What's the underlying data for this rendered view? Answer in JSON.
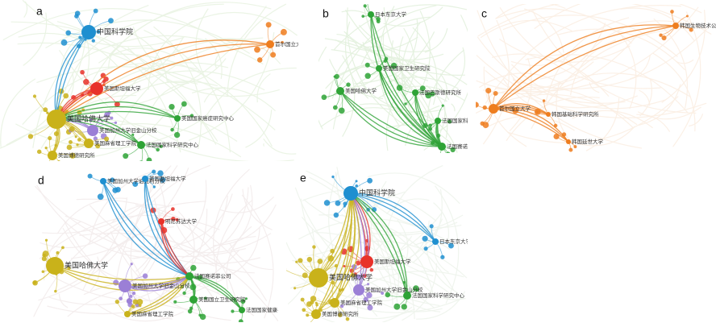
{
  "panels": [
    {
      "label": "a",
      "nodes": [
        {
          "label": "中国科学院"
        },
        {
          "label": "首尔国立大学"
        },
        {
          "label": "美国斯坦福大学"
        },
        {
          "label": "美国哈佛大学"
        },
        {
          "label": "美国加州大学旧金山分校"
        },
        {
          "label": "美国麻省理工学院"
        },
        {
          "label": "美国博德研究所"
        },
        {
          "label": "法国国家科学研究中心"
        },
        {
          "label": "美国国家癌症研究中心"
        }
      ]
    },
    {
      "label": "b",
      "nodes": [
        {
          "label": "日本东京大学"
        },
        {
          "label": "美国国家卫生研究院"
        },
        {
          "label": "美国哈佛大学"
        },
        {
          "label": "法国巴斯德研究所"
        },
        {
          "label": "法国国家科学研究中心"
        },
        {
          "label": "法国赛诺菲公司"
        }
      ]
    },
    {
      "label": "c",
      "nodes": [
        {
          "label": "韩国生物技术公司"
        },
        {
          "label": "首尔国立大学"
        },
        {
          "label": "韩国基础科学研究所"
        },
        {
          "label": "韩国延世大学"
        }
      ]
    },
    {
      "label": "d",
      "nodes": [
        {
          "label": "法国赛诺菲公司"
        },
        {
          "label": "美国加州大学伯克利分校"
        },
        {
          "label": "美国斯坦福大学"
        },
        {
          "label": "明尼苏达大学"
        },
        {
          "label": "美国哈佛大学"
        },
        {
          "label": "美国加州大学旧金山分校"
        },
        {
          "label": "美国麻省理工学院"
        },
        {
          "label": "美国国立卫生研究院"
        },
        {
          "label": "法国国家健康与医学研究院"
        }
      ]
    },
    {
      "label": "e",
      "nodes": [
        {
          "label": "中国科学院"
        },
        {
          "label": "美国斯坦福大学"
        },
        {
          "label": "日本东京大学"
        },
        {
          "label": "美国哈佛大学"
        },
        {
          "label": "美国加州大学旧金山分校"
        },
        {
          "label": "美国麻省理工学院"
        },
        {
          "label": "美国博德研究所"
        },
        {
          "label": "法国国家科学研究中心"
        }
      ]
    }
  ]
}
